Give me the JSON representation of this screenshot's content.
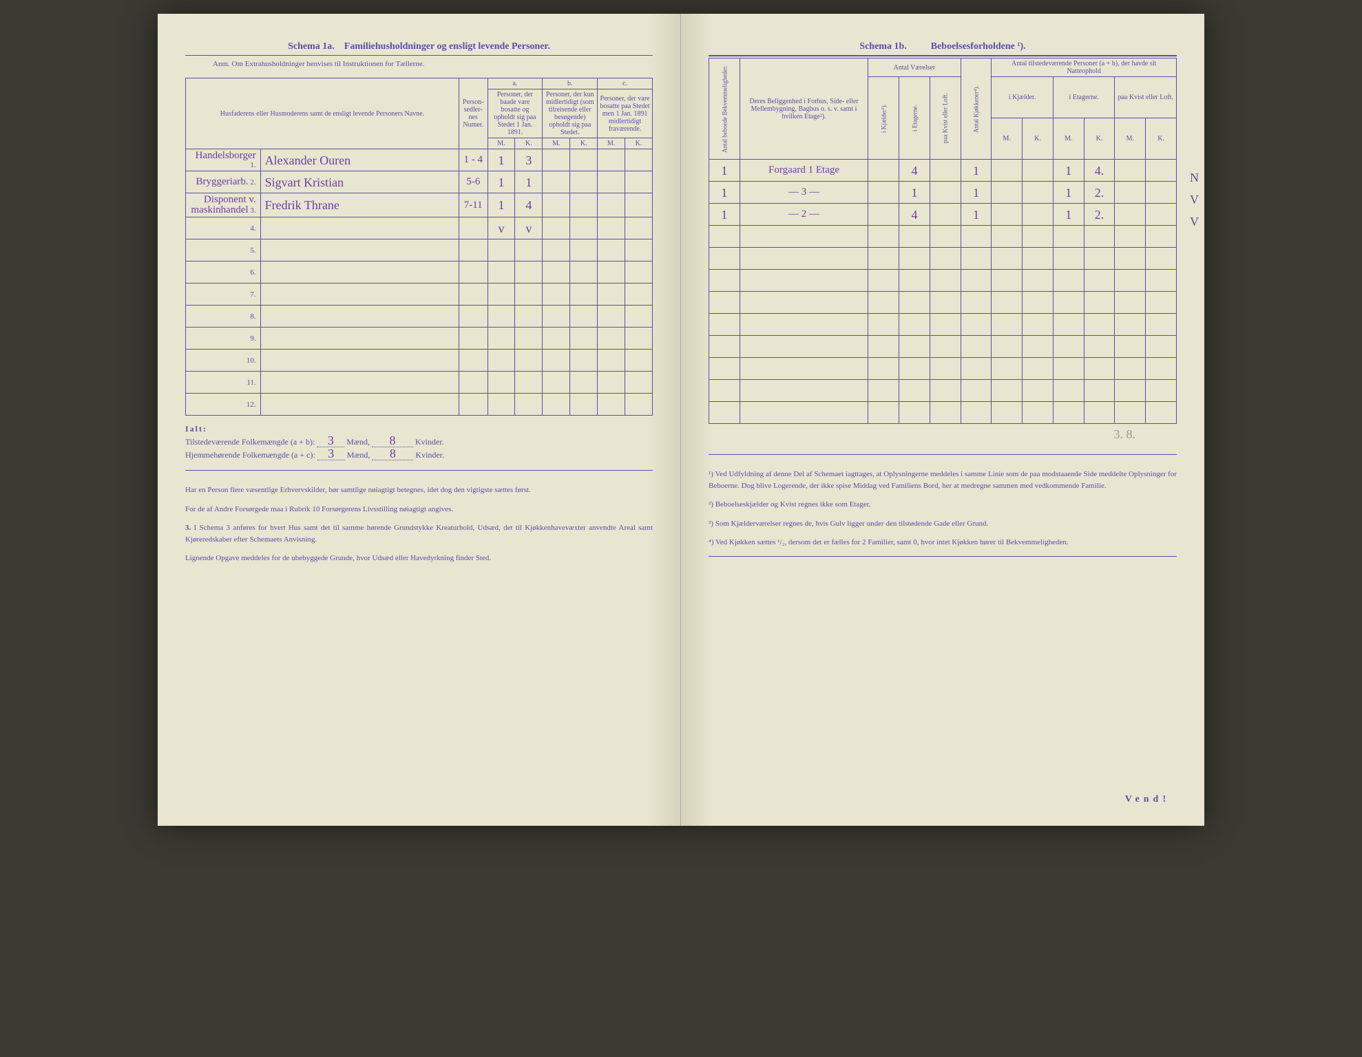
{
  "left": {
    "schema_label": "Schema 1a.",
    "schema_title": "Familiehusholdninger og ensligt levende Personer.",
    "anm": "Anm. Om Extrahusholdninger henvises til Instruktionen for Tællerne.",
    "col_names": "Husfaderens eller Husmoderens samt de ensligt levende Personers Navne.",
    "col_person": "Person-sedler-nes Numer.",
    "col_a_label": "a.",
    "col_a_text": "Personer, der baade vare bosatte og opholdt sig paa Stedet 1 Jan. 1891.",
    "col_b_label": "b.",
    "col_b_text": "Personer, der kun midlertidigt (som tilreisende eller besøgende) opholdt sig paa Stedet.",
    "col_c_label": "c.",
    "col_c_text": "Personer, der vare bosatte paa Stedet men 1 Jan. 1891 midlertidigt fraværende.",
    "M": "M.",
    "K": "K.",
    "rows": [
      {
        "n": "1.",
        "occ": "Handelsborger",
        "name": "Alexander Ouren",
        "ps": "1 - 4",
        "aM": "1",
        "aK": "3",
        "bM": "",
        "bK": "",
        "cM": "",
        "cK": ""
      },
      {
        "n": "2.",
        "occ": "Bryggeriarb.",
        "name": "Sigvart Kristian",
        "ps": "5-6",
        "aM": "1",
        "aK": "1",
        "bM": "",
        "bK": "",
        "cM": "",
        "cK": ""
      },
      {
        "n": "3.",
        "occ": "Disponent v. maskinhandel",
        "name": "Fredrik Thrane",
        "ps": "7-11",
        "aM": "1",
        "aK": "4",
        "bM": "",
        "bK": "",
        "cM": "",
        "cK": ""
      },
      {
        "n": "4.",
        "occ": "",
        "name": "",
        "ps": "",
        "aM": "v",
        "aK": "v",
        "bM": "",
        "bK": "",
        "cM": "",
        "cK": ""
      },
      {
        "n": "5.",
        "occ": "",
        "name": "",
        "ps": "",
        "aM": "",
        "aK": "",
        "bM": "",
        "bK": "",
        "cM": "",
        "cK": ""
      },
      {
        "n": "6.",
        "occ": "",
        "name": "",
        "ps": "",
        "aM": "",
        "aK": "",
        "bM": "",
        "bK": "",
        "cM": "",
        "cK": ""
      },
      {
        "n": "7.",
        "occ": "",
        "name": "",
        "ps": "",
        "aM": "",
        "aK": "",
        "bM": "",
        "bK": "",
        "cM": "",
        "cK": ""
      },
      {
        "n": "8.",
        "occ": "",
        "name": "",
        "ps": "",
        "aM": "",
        "aK": "",
        "bM": "",
        "bK": "",
        "cM": "",
        "cK": ""
      },
      {
        "n": "9.",
        "occ": "",
        "name": "",
        "ps": "",
        "aM": "",
        "aK": "",
        "bM": "",
        "bK": "",
        "cM": "",
        "cK": ""
      },
      {
        "n": "10.",
        "occ": "",
        "name": "",
        "ps": "",
        "aM": "",
        "aK": "",
        "bM": "",
        "bK": "",
        "cM": "",
        "cK": ""
      },
      {
        "n": "11.",
        "occ": "",
        "name": "",
        "ps": "",
        "aM": "",
        "aK": "",
        "bM": "",
        "bK": "",
        "cM": "",
        "cK": ""
      },
      {
        "n": "12.",
        "occ": "",
        "name": "",
        "ps": "",
        "aM": "",
        "aK": "",
        "bM": "",
        "bK": "",
        "cM": "",
        "cK": ""
      }
    ],
    "ialt_label": "Ialt:",
    "tils_line_pre": "Tilstedeværende Folkemængde (a + b): ",
    "hjem_line_pre": "Hjemmehørende Folkemængde (a + c): ",
    "maend": "Mænd,",
    "kvinder": "Kvinder.",
    "tils_m": "3",
    "tils_k": "8",
    "hjem_m": "3",
    "hjem_k": "8",
    "foot1": "Har en Person flere væsentlige Erhvervskilder, bør samtlige nøiagtigt betegnes, idet dog den vigtigste sættes først.",
    "foot2": "For de af Andre Forsørgede maa i Rubrik 10 Forsørgerens Livsstilling nøiagtigt angives.",
    "foot3_label": "3.",
    "foot3": "I Schema 3 anføres for hvert Hus samt det til samme hørende Grundstykke Kreaturhold, Udsæd, det til Kjøkkenhavevæxter anvendte Areal samt Kjøreredskaber efter Schemaets Anvisning.",
    "foot4": "Lignende Opgave meddeles for de ubebyggede Grunde, hvor Udsæd eller Havedyrkning finder Sted."
  },
  "right": {
    "schema_label": "Schema 1b.",
    "schema_title": "Beboelsesforholdene ¹).",
    "col_antal_bekv": "Antal beboede Bekvemmeligheder.",
    "col_belig": "Deres Beliggenhed i Forhus, Side- eller Mellembygning, Baghus o. s. v. samt i hvilken Etage²).",
    "col_vaer_group": "Antal Værelser",
    "col_kjaelder": "i Kjælder³).",
    "col_etager": "i Etagerne.",
    "col_kvist": "paa Kvist eller Loft.",
    "col_kjok": "Antal Kjøkkener⁴).",
    "col_pers_group": "Antal tilstedeværende Personer (a + b), der havde sit Natteophold",
    "col_p_kjaeld": "i Kjælder.",
    "col_p_etag": "i Etagerne.",
    "col_p_kvist": "paa Kvist eller Loft.",
    "M": "M.",
    "K": "K.",
    "rows": [
      {
        "ab": "1",
        "bel": "Forgaard 1 Etage",
        "vk": "",
        "ve": "4",
        "vq": "",
        "kj": "1",
        "pkM": "",
        "pkK": "",
        "peM": "1",
        "peK": "4.",
        "pqM": "",
        "pqK": "",
        "margin": "N"
      },
      {
        "ab": "1",
        "bel": "— 3 —",
        "vk": "",
        "ve": "1",
        "vq": "",
        "kj": "1",
        "pkM": "",
        "pkK": "",
        "peM": "1",
        "peK": "2.",
        "pqM": "",
        "pqK": "",
        "margin": "V"
      },
      {
        "ab": "1",
        "bel": "— 2 —",
        "vk": "",
        "ve": "4",
        "vq": "",
        "kj": "1",
        "pkM": "",
        "pkK": "",
        "peM": "1",
        "peK": "2.",
        "pqM": "",
        "pqK": "",
        "margin": "V"
      },
      {
        "ab": "",
        "bel": "",
        "vk": "",
        "ve": "",
        "vq": "",
        "kj": "",
        "pkM": "",
        "pkK": "",
        "peM": "",
        "peK": "",
        "pqM": "",
        "pqK": "",
        "margin": ""
      },
      {
        "ab": "",
        "bel": "",
        "vk": "",
        "ve": "",
        "vq": "",
        "kj": "",
        "pkM": "",
        "pkK": "",
        "peM": "",
        "peK": "",
        "pqM": "",
        "pqK": "",
        "margin": ""
      },
      {
        "ab": "",
        "bel": "",
        "vk": "",
        "ve": "",
        "vq": "",
        "kj": "",
        "pkM": "",
        "pkK": "",
        "peM": "",
        "peK": "",
        "pqM": "",
        "pqK": "",
        "margin": ""
      },
      {
        "ab": "",
        "bel": "",
        "vk": "",
        "ve": "",
        "vq": "",
        "kj": "",
        "pkM": "",
        "pkK": "",
        "peM": "",
        "peK": "",
        "pqM": "",
        "pqK": "",
        "margin": ""
      },
      {
        "ab": "",
        "bel": "",
        "vk": "",
        "ve": "",
        "vq": "",
        "kj": "",
        "pkM": "",
        "pkK": "",
        "peM": "",
        "peK": "",
        "pqM": "",
        "pqK": "",
        "margin": ""
      },
      {
        "ab": "",
        "bel": "",
        "vk": "",
        "ve": "",
        "vq": "",
        "kj": "",
        "pkM": "",
        "pkK": "",
        "peM": "",
        "peK": "",
        "pqM": "",
        "pqK": "",
        "margin": ""
      },
      {
        "ab": "",
        "bel": "",
        "vk": "",
        "ve": "",
        "vq": "",
        "kj": "",
        "pkM": "",
        "pkK": "",
        "peM": "",
        "peK": "",
        "pqM": "",
        "pqK": "",
        "margin": ""
      },
      {
        "ab": "",
        "bel": "",
        "vk": "",
        "ve": "",
        "vq": "",
        "kj": "",
        "pkM": "",
        "pkK": "",
        "peM": "",
        "peK": "",
        "pqM": "",
        "pqK": "",
        "margin": ""
      },
      {
        "ab": "",
        "bel": "",
        "vk": "",
        "ve": "",
        "vq": "",
        "kj": "",
        "pkM": "",
        "pkK": "",
        "peM": "",
        "peK": "",
        "pqM": "",
        "pqK": "",
        "margin": ""
      }
    ],
    "bottom_note": "3. 8.",
    "fn1": "¹) Ved Udfyldning af denne Del af Schemaet iagttages, at Oplysningerne meddeles i samme Linie som de paa modstaaende Side meddelte Oplysninger for Beboerne. Dog blive Logerende, der ikke spise Middag ved Familiens Bord, her at medregne sammen med vedkommende Familie.",
    "fn2": "²) Beboelseskjælder og Kvist regnes ikke som Etager.",
    "fn3": "³) Som Kjælderværelser regnes de, hvis Gulv ligger under den tilstødende Gade eller Grund.",
    "fn4": "⁴) Ved Kjøkken sættes ¹/₂, dersom det er fælles for 2 Familier, samt 0, hvor intet Kjøkken hører til Bekvemmeligheden.",
    "vend": "Vend!"
  }
}
